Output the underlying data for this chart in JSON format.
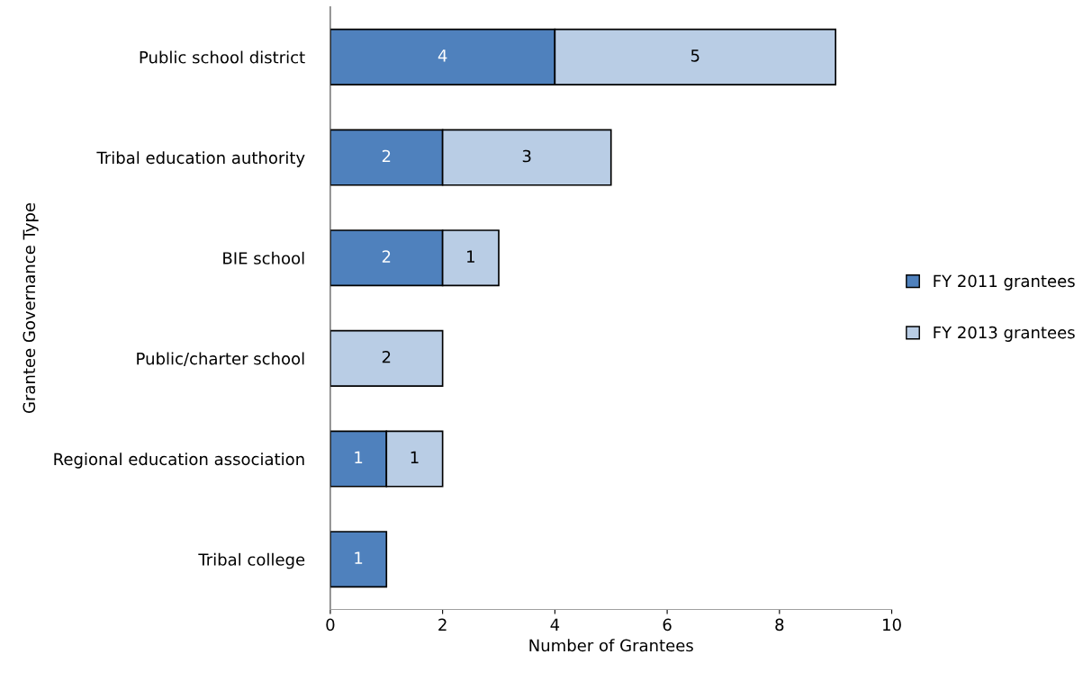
{
  "chart_data": {
    "type": "bar",
    "orientation": "horizontal",
    "stacked": true,
    "categories": [
      "Public school district",
      "Tribal education authority",
      "BIE school",
      "Public/charter school",
      "Regional education association",
      "Tribal college"
    ],
    "series": [
      {
        "name": "FY 2011 grantees",
        "color": "#4f81bd",
        "values": [
          4,
          2,
          2,
          0,
          1,
          1
        ],
        "value_labels": [
          "4",
          "2",
          "2",
          null,
          "1",
          "1"
        ]
      },
      {
        "name": "FY 2013 grantees",
        "color": "#b9cde5",
        "values": [
          5,
          3,
          1,
          2,
          1,
          0
        ],
        "value_labels": [
          "5",
          "3",
          "1",
          "2",
          "1",
          null
        ]
      }
    ],
    "xlabel": "Number of Grantees",
    "ylabel": "Grantee Governance Type",
    "xlim": [
      0,
      10
    ],
    "xticks": [
      0,
      2,
      4,
      6,
      8,
      10
    ],
    "grid": false,
    "legend": "right"
  }
}
